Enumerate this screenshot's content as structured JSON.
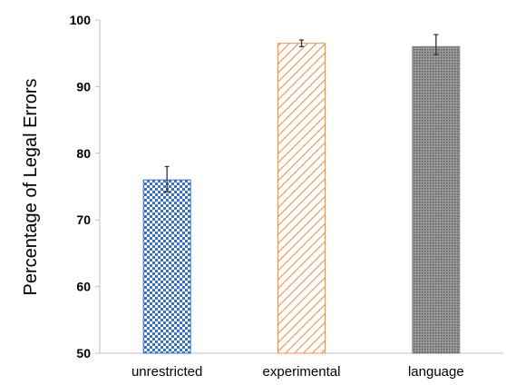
{
  "chart_data": {
    "type": "bar",
    "title": "",
    "xlabel": "",
    "ylabel": "Percentage of Legal Errors",
    "ylim": [
      50,
      100
    ],
    "yticks": [
      50,
      60,
      70,
      80,
      90,
      100
    ],
    "categories": [
      "unrestricted",
      "experimental",
      "language"
    ],
    "values": [
      76,
      96.5,
      96
    ],
    "error_low": [
      74.2,
      96,
      94.8
    ],
    "error_high": [
      78,
      97,
      97.8
    ],
    "patterns": [
      "checker",
      "diagonal-stripes",
      "dots"
    ],
    "colors": [
      "#3a6fc4",
      "#e8925a",
      "#808080"
    ],
    "grid": false,
    "legend": "none"
  }
}
